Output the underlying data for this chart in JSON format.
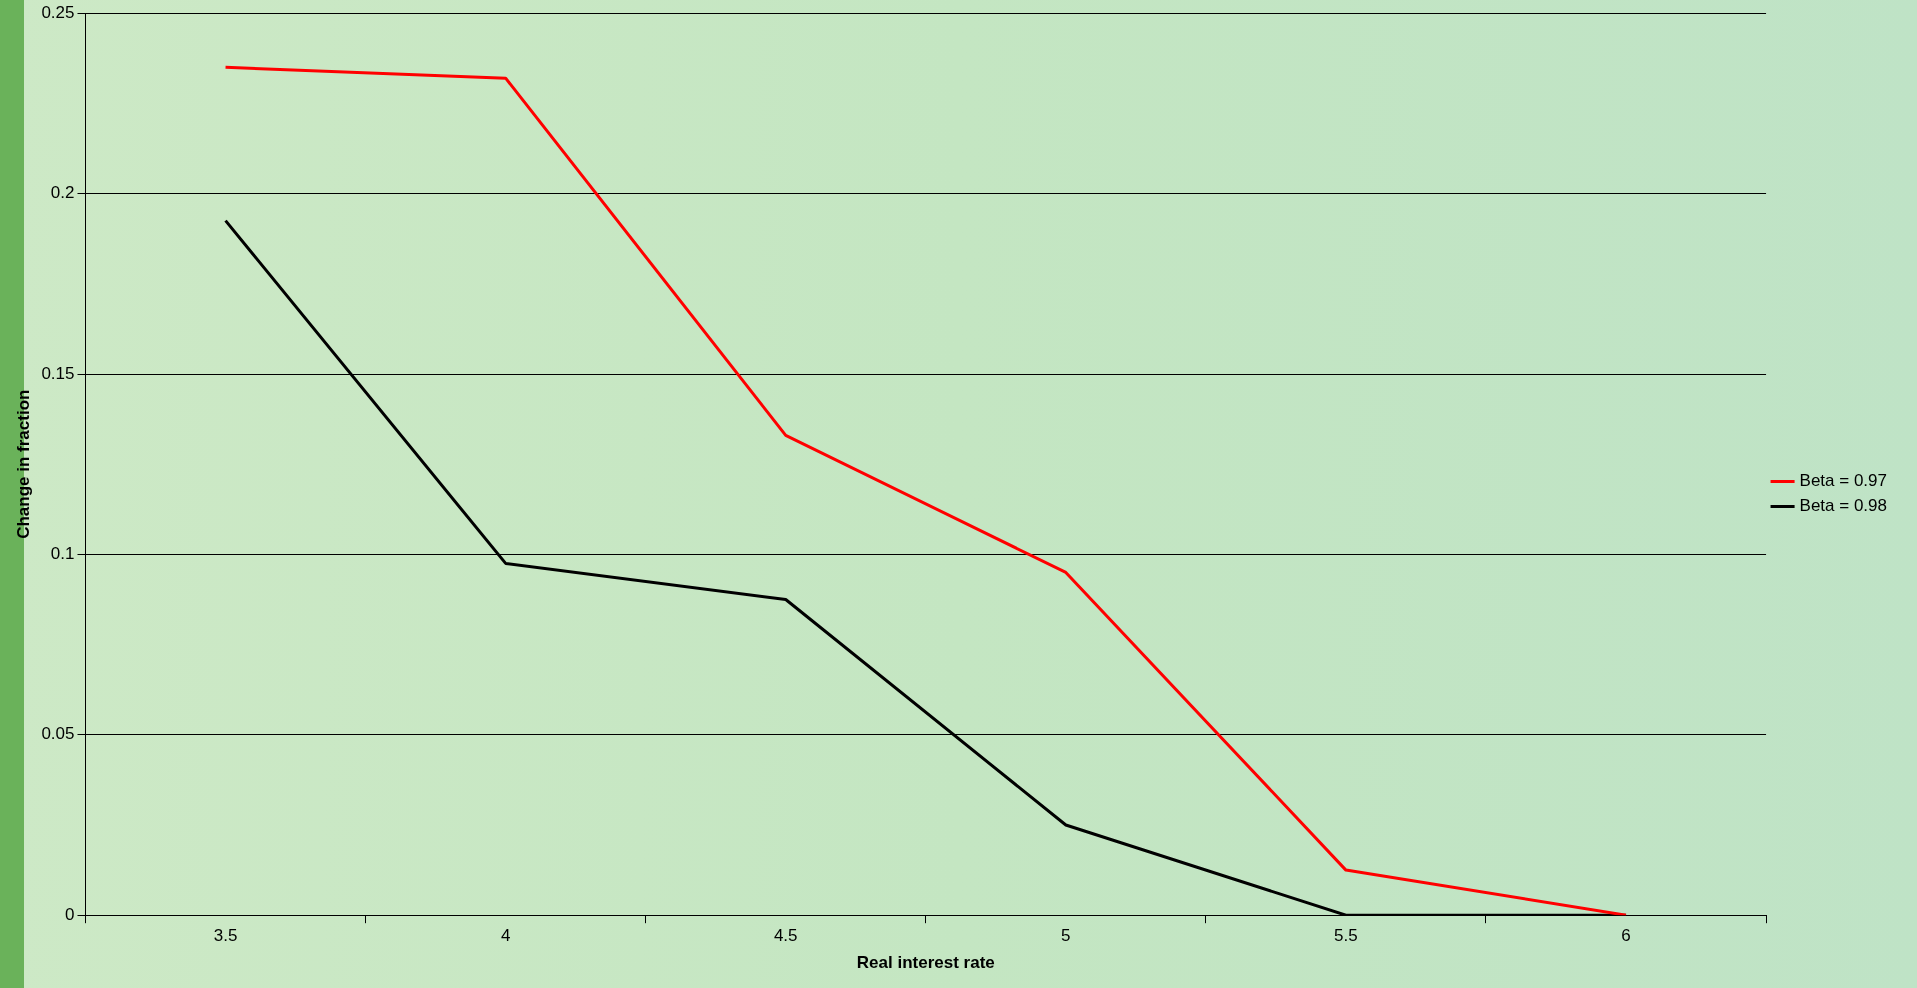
{
  "chart_data": {
    "type": "line",
    "xlabel": "Real interest rate",
    "ylabel": "Change in fraction",
    "categories": [
      "3.5",
      "4",
      "4.5",
      "5",
      "5.5",
      "6"
    ],
    "series": [
      {
        "name": "Beta = 0.97",
        "color": "#ff0000",
        "values": [
          0.235,
          0.232,
          0.133,
          0.095,
          0.0125,
          0
        ]
      },
      {
        "name": "Beta = 0.98",
        "color": "#000000",
        "values": [
          0.1925,
          0.0975,
          0.0875,
          0.025,
          0,
          0
        ]
      }
    ],
    "ylim": [
      0,
      0.25
    ],
    "yticks": [
      0,
      0.05,
      0.1,
      0.15,
      0.2,
      0.25
    ],
    "grid": "y",
    "legend": "right",
    "marker": "none",
    "line_style": "solid"
  }
}
